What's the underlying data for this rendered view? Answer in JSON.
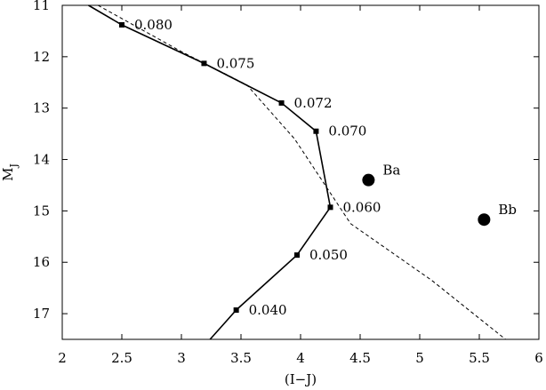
{
  "chart_data": {
    "type": "line",
    "xlabel": "(I−J)",
    "ylabel_main": "M",
    "ylabel_sub": "J",
    "xlim": [
      2,
      6
    ],
    "ylim": [
      11,
      17.5
    ],
    "y_inverted": true,
    "grid": false,
    "xticks": [
      2,
      2.5,
      3,
      3.5,
      4,
      4.5,
      5,
      5.5,
      6
    ],
    "xtick_labels": [
      "2",
      "2.5",
      "3",
      "3.5",
      "4",
      "4.5",
      "5",
      "5.5",
      "6"
    ],
    "yticks": [
      11,
      12,
      13,
      14,
      15,
      16,
      17
    ],
    "ytick_labels": [
      "11",
      "12",
      "13",
      "14",
      "15",
      "16",
      "17"
    ],
    "series": [
      {
        "style": "solid",
        "color": "#000000",
        "x": [
          2.22,
          2.5,
          3.19,
          3.84,
          4.13,
          4.25,
          3.97,
          3.46,
          3.24
        ],
        "y": [
          11.0,
          11.38,
          12.13,
          12.9,
          13.45,
          14.93,
          15.86,
          16.93,
          17.5
        ],
        "markers": [
          {
            "x": 2.5,
            "y": 11.38,
            "label": "0.080"
          },
          {
            "x": 3.19,
            "y": 12.13,
            "label": "0.075"
          },
          {
            "x": 3.84,
            "y": 12.9,
            "label": "0.072"
          },
          {
            "x": 4.13,
            "y": 13.45,
            "label": "0.070"
          },
          {
            "x": 4.25,
            "y": 14.93,
            "label": "0.060"
          },
          {
            "x": 3.97,
            "y": 15.86,
            "label": "0.050"
          },
          {
            "x": 3.46,
            "y": 16.93,
            "label": "0.040"
          }
        ]
      },
      {
        "style": "dashed",
        "color": "#000000",
        "x": [
          2.3,
          3.0,
          3.55,
          3.95,
          4.42,
          5.1,
          5.72
        ],
        "y": [
          11.0,
          11.9,
          12.55,
          13.6,
          15.25,
          16.35,
          17.5
        ]
      }
    ],
    "points": [
      {
        "label": "Ba",
        "x": 4.57,
        "y": 14.4
      },
      {
        "label": "Bb",
        "x": 5.54,
        "y": 15.17
      }
    ]
  }
}
